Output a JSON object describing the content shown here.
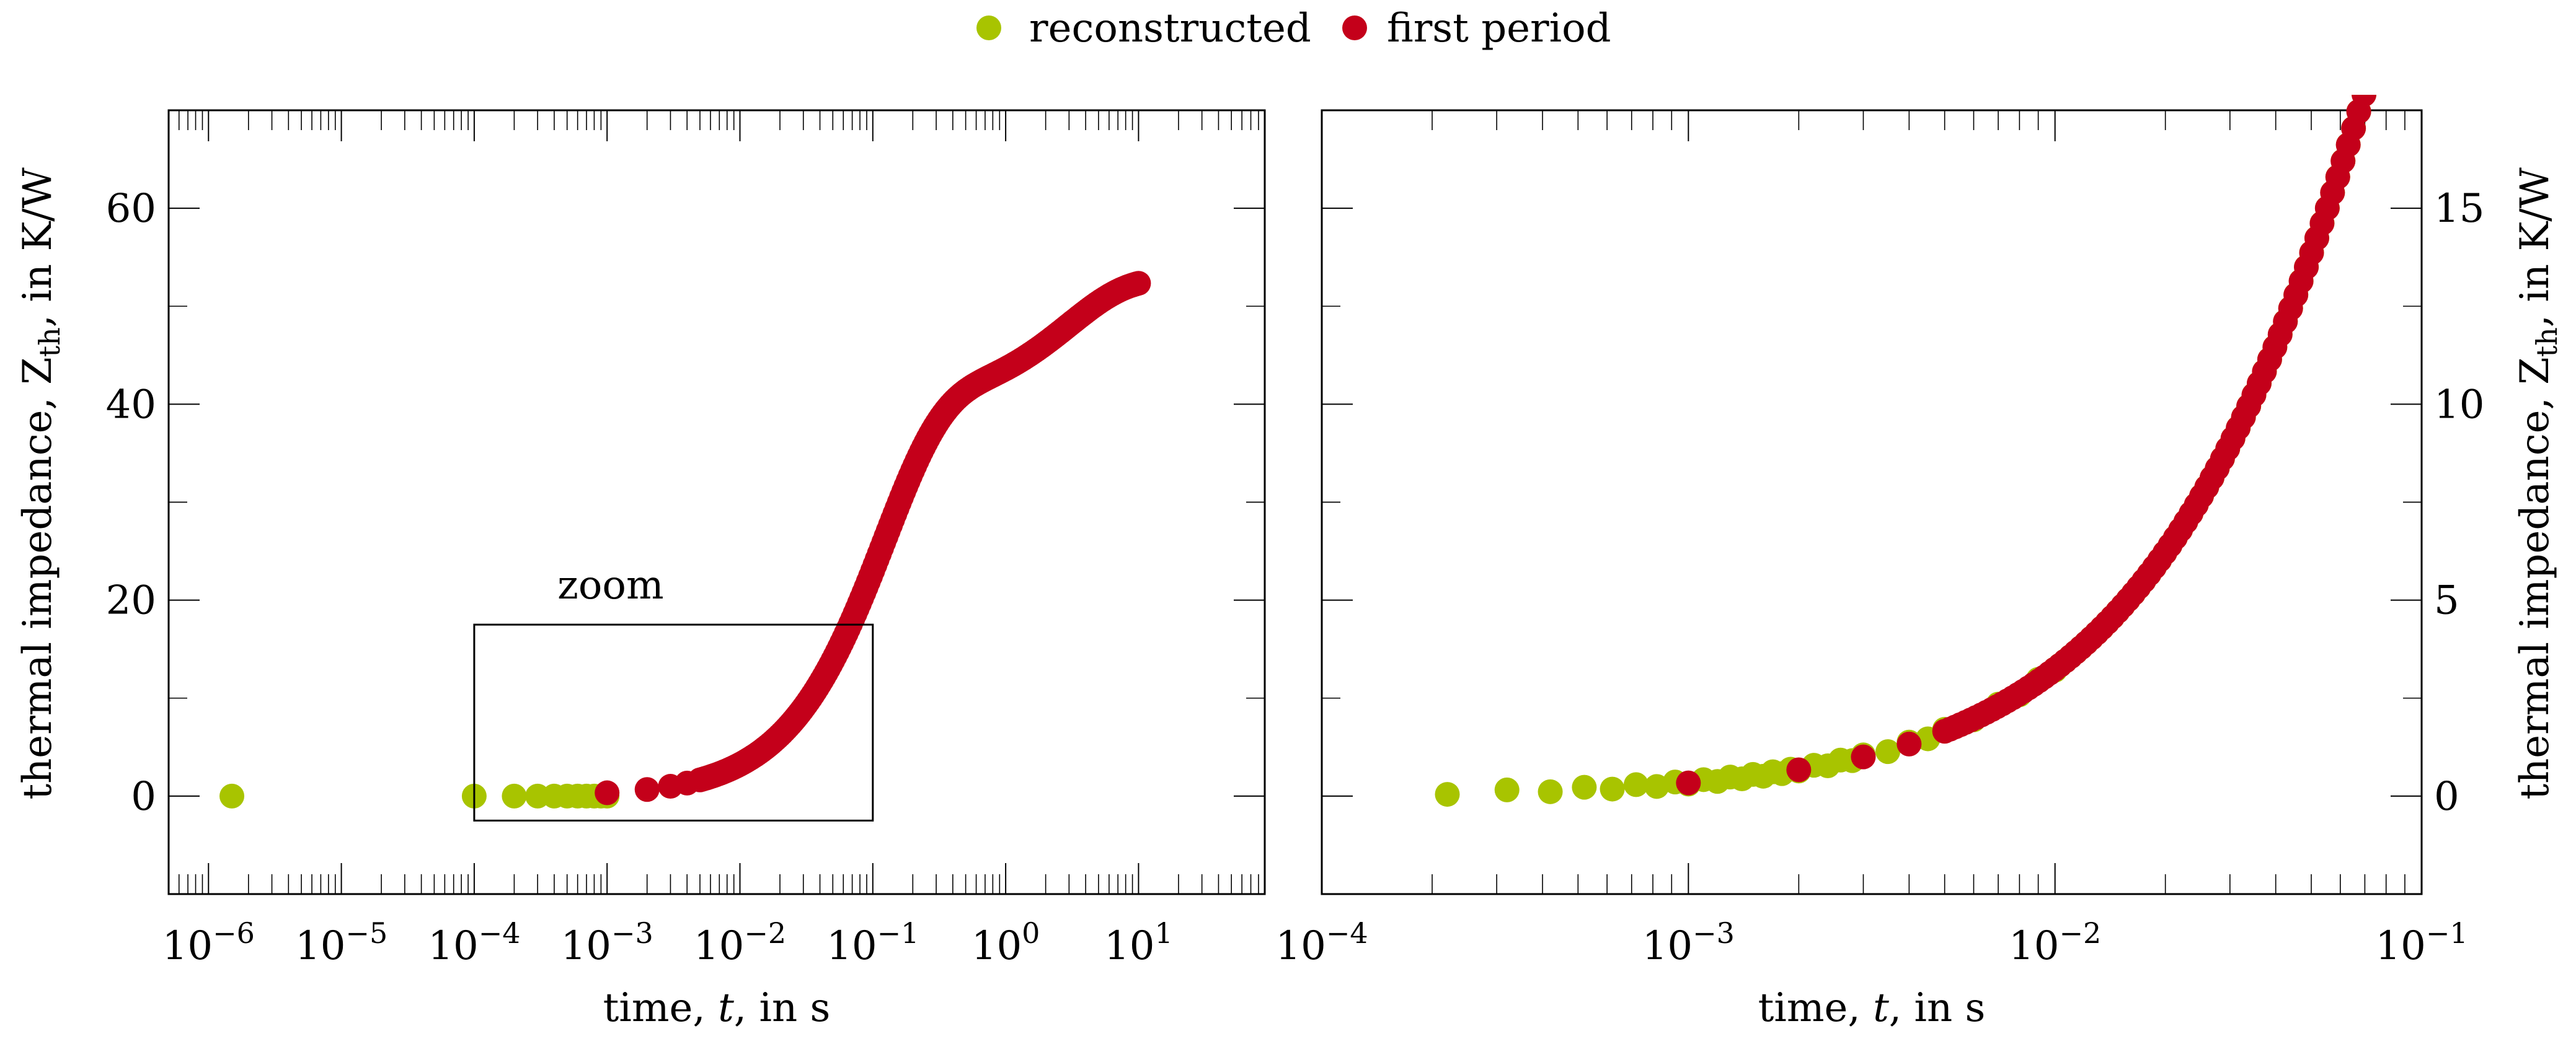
{
  "legend": {
    "reconstructed": "reconstructed",
    "first_period": "first period"
  },
  "colors": {
    "reconstructed": "#a8c400",
    "first_period": "#c4001a",
    "axis": "#000000"
  },
  "chart_data": [
    {
      "type": "scatter",
      "id": "left",
      "xscale": "log",
      "xlim_exp": [
        -6.3,
        1.95
      ],
      "ylim": [
        -10,
        70
      ],
      "xticks": [
        {
          "exp": -6,
          "base": "10",
          "sup": "−6"
        },
        {
          "exp": -5,
          "base": "10",
          "sup": "−5"
        },
        {
          "exp": -4,
          "base": "10",
          "sup": "−4"
        },
        {
          "exp": -3,
          "base": "10",
          "sup": "−3"
        },
        {
          "exp": -2,
          "base": "10",
          "sup": "−2"
        },
        {
          "exp": -1,
          "base": "10",
          "sup": "−1"
        },
        {
          "exp": 0,
          "base": "10",
          "sup": "0"
        },
        {
          "exp": 1,
          "base": "10",
          "sup": "1"
        }
      ],
      "yticks": [
        {
          "value": 0,
          "label": "0"
        },
        {
          "value": 20,
          "label": "20"
        },
        {
          "value": 40,
          "label": "40"
        },
        {
          "value": 60,
          "label": "60"
        }
      ],
      "xlabel": {
        "pre": "time, ",
        "var": "t",
        "post": ", in s"
      },
      "ylabel": {
        "pre": "thermal impedance, Z",
        "sub": "th",
        "post": ", in K/W"
      },
      "zoom": {
        "label": "zoom",
        "x": [
          0.0001,
          0.1
        ],
        "y": [
          -2.5,
          17.5
        ]
      },
      "series": [
        {
          "name": "reconstructed",
          "x": [
            1.5e-06,
            0.0001,
            0.0002,
            0.0003,
            0.0004,
            0.0005,
            0.0006,
            0.0007,
            0.0008,
            0.0009,
            0.001
          ],
          "y": [
            0,
            0,
            0,
            0,
            0,
            0,
            0,
            0,
            0,
            0,
            0
          ]
        },
        {
          "name": "first period",
          "model": {
            "x_min": 0.001,
            "x_max": 10,
            "dense_from": 0.005,
            "points_per_decade": 60,
            "sparse_x": [
              0.001,
              0.002,
              0.003,
              0.004
            ],
            "terms": [
              {
                "A": 40,
                "tau": 0.12
              },
              {
                "A": 12.8,
                "tau": 3
              }
            ]
          }
        }
      ]
    },
    {
      "type": "scatter",
      "id": "right",
      "xscale": "log",
      "xlim_exp": [
        -4,
        -1
      ],
      "ylim": [
        -2.5,
        17.5
      ],
      "xticks": [
        {
          "exp": -4,
          "base": "10",
          "sup": "−4"
        },
        {
          "exp": -3,
          "base": "10",
          "sup": "−3"
        },
        {
          "exp": -2,
          "base": "10",
          "sup": "−2"
        },
        {
          "exp": -1,
          "base": "10",
          "sup": "−1"
        }
      ],
      "yticks": [
        {
          "value": 0,
          "label": "0"
        },
        {
          "value": 5,
          "label": "5"
        },
        {
          "value": 10,
          "label": "10"
        },
        {
          "value": 15,
          "label": "15"
        }
      ],
      "xlabel": {
        "pre": "time, ",
        "var": "t",
        "post": ", in s"
      },
      "ylabel": {
        "pre": "thermal impedance, Z",
        "sub": "th",
        "post": ", in K/W"
      },
      "series": [
        {
          "name": "reconstructed",
          "x": [
            0.00022,
            0.00032,
            0.00042,
            0.00052,
            0.00062,
            0.00072,
            0.00082,
            0.00092,
            0.001,
            0.0011,
            0.0012,
            0.0013,
            0.0014,
            0.0015,
            0.0016,
            0.0017,
            0.0018,
            0.0019,
            0.002,
            0.0022,
            0.0024,
            0.0026,
            0.0028,
            0.003,
            0.0035,
            0.004,
            0.0045,
            0.005,
            0.006,
            0.007,
            0.008,
            0.009,
            0.01
          ],
          "model": {
            "x_min": 0.01,
            "x_max": 0.1,
            "points_per_decade": 70,
            "terms": [
              {
                "A": 40,
                "tau": 0.12
              },
              {
                "A": 12.8,
                "tau": 3
              }
            ]
          },
          "noise_y": true
        },
        {
          "name": "first period",
          "model": {
            "x_min": 0.001,
            "x_max": 0.1,
            "dense_from": 0.005,
            "points_per_decade": 70,
            "sparse_x": [
              0.001,
              0.002,
              0.003,
              0.004
            ],
            "terms": [
              {
                "A": 40,
                "tau": 0.12
              },
              {
                "A": 12.8,
                "tau": 3
              }
            ]
          }
        }
      ]
    }
  ]
}
